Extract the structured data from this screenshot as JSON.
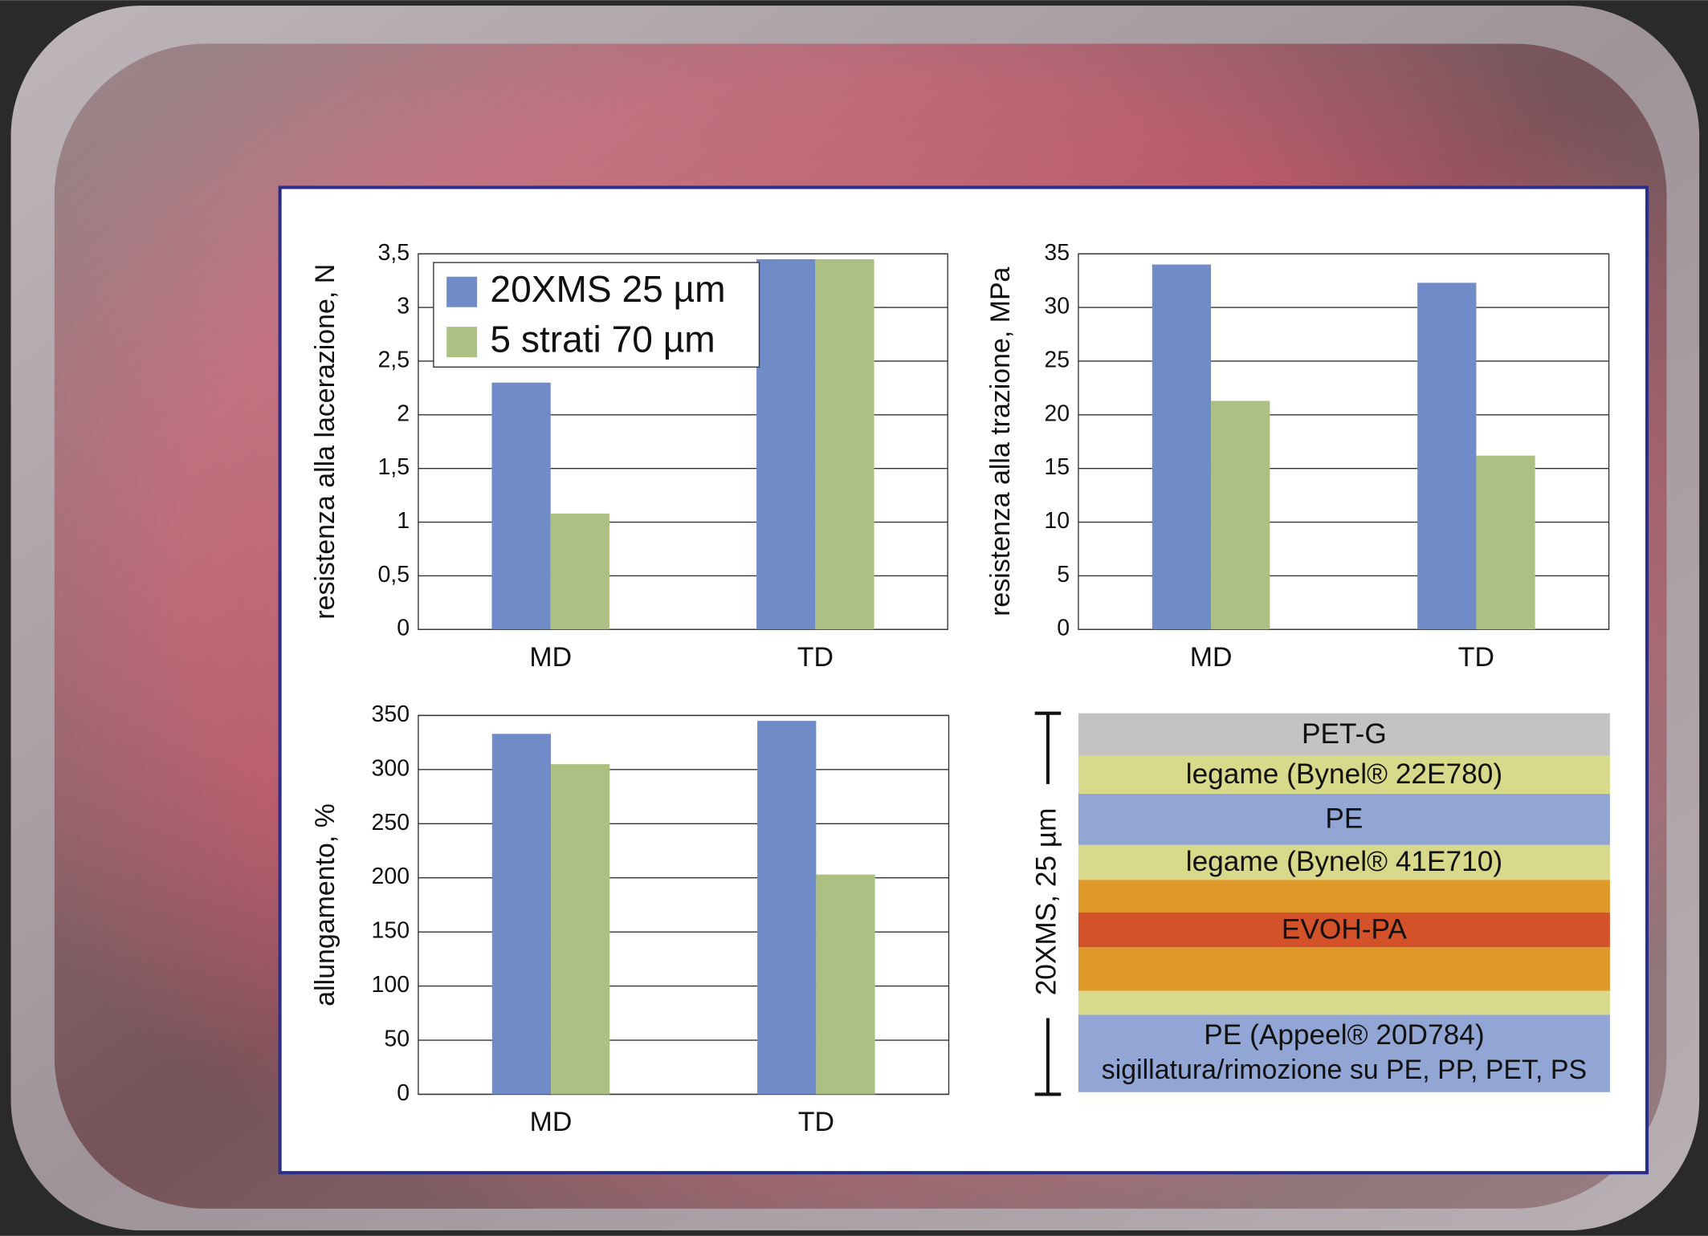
{
  "chart_data": [
    {
      "type": "bar",
      "y_label": "resistenza alla lacerazione, N",
      "categories": [
        "MD",
        "TD"
      ],
      "series": [
        {
          "name": "20XMS 25 µm",
          "color": "#6f8bc8",
          "values": [
            2.3,
            3.45
          ]
        },
        {
          "name": "5 strati 70 µm",
          "color": "#adc084",
          "values": [
            1.08,
            3.45
          ]
        }
      ],
      "ylim": [
        0,
        3.5
      ],
      "yticks": [
        0,
        {
          "value": 0.5,
          "label": "0,5"
        },
        1,
        {
          "value": 1.5,
          "label": "1,5"
        },
        2,
        {
          "value": 2.5,
          "label": "2,5"
        },
        3,
        {
          "value": 3.5,
          "label": "3,5"
        }
      ],
      "grid": true,
      "legend": "upper left"
    },
    {
      "type": "bar",
      "y_label": "resistenza alla trazione, MPa",
      "categories": [
        "MD",
        "TD"
      ],
      "series": [
        {
          "name": "20XMS 25 µm",
          "color": "#6f8bc8",
          "values": [
            34,
            32.3
          ]
        },
        {
          "name": "5 strati 70 µm",
          "color": "#adc084",
          "values": [
            21.3,
            16.2
          ]
        }
      ],
      "ylim": [
        0,
        35
      ],
      "yticks": [
        0,
        5,
        10,
        15,
        20,
        25,
        30,
        35
      ],
      "grid": true
    },
    {
      "type": "bar",
      "y_label": "allungamento, %",
      "categories": [
        "MD",
        "TD"
      ],
      "series": [
        {
          "name": "20XMS 25 µm",
          "color": "#6f8bc8",
          "values": [
            333,
            345
          ]
        },
        {
          "name": "5 strati 70 µm",
          "color": "#adc084",
          "values": [
            305,
            203
          ]
        }
      ],
      "ylim": [
        0,
        350
      ],
      "yticks": [
        0,
        50,
        100,
        150,
        200,
        250,
        300,
        350
      ],
      "grid": true
    }
  ],
  "diagram": {
    "bracket_label": "20XMS, 25 µm",
    "layers": [
      {
        "label": "PET-G",
        "color": "#c3c3c3"
      },
      {
        "label": "legame (Bynel® 22E780)",
        "color": "#d8d98a"
      },
      {
        "label": "PE",
        "color": "#92a6d6"
      },
      {
        "label": "legame (Bynel® 41E710)",
        "color": "#d8d98a"
      },
      {
        "color": "#e09a2a"
      },
      {
        "label": "EVOH-PA",
        "color": "#d4522a"
      },
      {
        "color": "#e09a2a"
      },
      {
        "color": "#d8d98a"
      },
      {
        "label": "PE (Appeel® 20D784)",
        "label2": "sigillatura/rimozione su PE, PP, PET, PS",
        "color": "#92a6d6"
      }
    ]
  }
}
